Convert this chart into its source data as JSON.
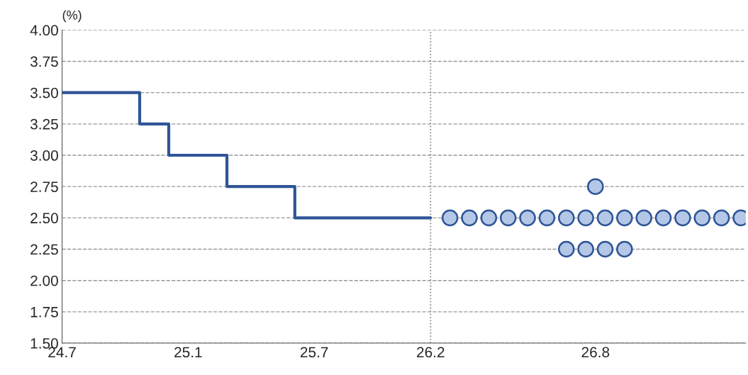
{
  "chart_data": {
    "type": "step",
    "ylabel": "(%)",
    "categories": [
      "24.7",
      null,
      null,
      null,
      null,
      null,
      null,
      null,
      null,
      null,
      null,
      null,
      null,
      "25.1",
      null,
      null,
      null,
      null,
      null,
      null,
      null,
      null,
      null,
      null,
      null,
      null,
      "25.7",
      null,
      null,
      null,
      null,
      null,
      null,
      null,
      null,
      null,
      null,
      null,
      "26.2",
      null,
      null,
      null,
      null,
      null,
      null,
      null,
      null,
      null,
      null,
      null,
      null,
      null,
      null,
      null,
      null,
      "26.8",
      null,
      null,
      null,
      null,
      null,
      null,
      null,
      null,
      null,
      null,
      null,
      null,
      null,
      null,
      null
    ],
    "series": [
      {
        "color": "#2f5597",
        "values": [
          3.5,
          3.5,
          3.5,
          3.5,
          3.5,
          3.5,
          3.5,
          3.5,
          3.25,
          3.25,
          3.25,
          3.0,
          3.0,
          3.0,
          3.0,
          3.0,
          3.0,
          2.75,
          2.75,
          2.75,
          2.75,
          2.75,
          2.75,
          2.75,
          2.5,
          2.5,
          2.5,
          2.5,
          2.5,
          2.5,
          2.5,
          2.5,
          2.5,
          2.5,
          2.5,
          2.5,
          2.5,
          2.5,
          2.5,
          null,
          null,
          null,
          null,
          null,
          null,
          null,
          null,
          null,
          null,
          null,
          null,
          null,
          null,
          null,
          null,
          null,
          null,
          null,
          null,
          null,
          null,
          null,
          null,
          null,
          null,
          null,
          null,
          null,
          null,
          null,
          null
        ]
      },
      {
        "type": "scatter",
        "color": "#b4c7e7",
        "values": [
          null,
          null,
          null,
          null,
          null,
          null,
          null,
          null,
          null,
          null,
          null,
          null,
          null,
          null,
          null,
          null,
          null,
          null,
          null,
          null,
          null,
          null,
          null,
          null,
          null,
          null,
          null,
          null,
          null,
          null,
          null,
          null,
          null,
          null,
          null,
          null,
          null,
          null,
          null,
          null,
          2.5,
          null,
          2.5,
          null,
          2.5,
          null,
          2.5,
          null,
          2.5,
          null,
          2.5,
          null,
          2.5,
          null,
          2.5,
          null,
          2.5,
          null,
          2.5,
          null,
          2.5,
          null,
          2.5,
          null,
          2.5,
          null,
          2.5,
          null,
          2.5,
          null,
          2.5
        ]
      },
      {
        "type": "scatter",
        "color": "#b4c7e7",
        "values": [
          null,
          null,
          null,
          null,
          null,
          null,
          null,
          null,
          null,
          null,
          null,
          null,
          null,
          null,
          null,
          null,
          null,
          null,
          null,
          null,
          null,
          null,
          null,
          null,
          null,
          null,
          null,
          null,
          null,
          null,
          null,
          null,
          null,
          null,
          null,
          null,
          null,
          null,
          null,
          null,
          null,
          null,
          null,
          null,
          null,
          null,
          null,
          null,
          null,
          null,
          null,
          null,
          null,
          null,
          null,
          2.75,
          null,
          null,
          null,
          null,
          null,
          null,
          null,
          null,
          null,
          null,
          null,
          null,
          null,
          null,
          null
        ]
      },
      {
        "type": "scatter",
        "color": "#b4c7e7",
        "values": [
          null,
          null,
          null,
          null,
          null,
          null,
          null,
          null,
          null,
          null,
          null,
          null,
          null,
          null,
          null,
          null,
          null,
          null,
          null,
          null,
          null,
          null,
          null,
          null,
          null,
          null,
          null,
          null,
          null,
          null,
          null,
          null,
          null,
          null,
          null,
          null,
          null,
          null,
          null,
          null,
          null,
          null,
          null,
          null,
          null,
          null,
          null,
          null,
          null,
          null,
          null,
          null,
          2.25,
          null,
          2.25,
          null,
          2.25,
          null,
          2.25,
          null,
          null,
          null,
          null,
          null,
          null,
          null,
          null,
          null,
          null,
          null,
          null
        ]
      }
    ],
    "ylim": [
      1.5,
      4.0
    ],
    "yticks": [
      {
        "value": 1.5,
        "label": "1.50"
      },
      {
        "value": 1.75,
        "label": "1.75"
      },
      {
        "value": 2.0,
        "label": "2.00"
      },
      {
        "value": 2.25,
        "label": "2.25"
      },
      {
        "value": 2.5,
        "label": "2.50"
      },
      {
        "value": 2.75,
        "label": "2.75"
      },
      {
        "value": 3.0,
        "label": "3.00"
      },
      {
        "value": 3.25,
        "label": "3.25"
      },
      {
        "value": 3.5,
        "label": "3.50"
      },
      {
        "value": 3.75,
        "label": "3.75"
      },
      {
        "value": 4.0,
        "label": "4.00"
      }
    ],
    "grid": "y",
    "ref_lines": [
      {
        "axis": "x",
        "value": "26.2",
        "color": "#7f7f7f",
        "line_style": "dotted"
      }
    ]
  }
}
